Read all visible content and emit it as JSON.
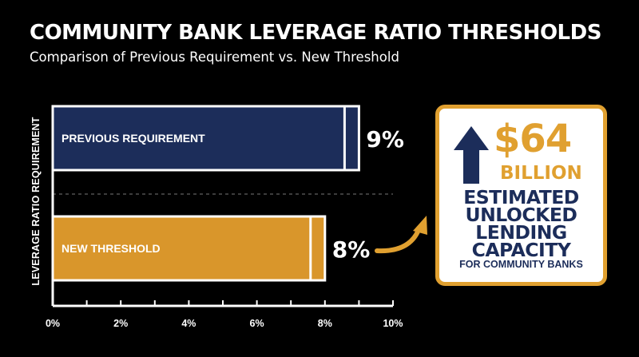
{
  "chart_data": {
    "type": "bar",
    "orientation": "horizontal",
    "title": "COMMUNITY BANK LEVERAGE RATIO THRESHOLDS",
    "subtitle": "Comparison of Previous Requirement vs. New Threshold",
    "ylabel": "LEVERAGE RATIO REQUIREMENT",
    "xlabel": "",
    "categories": [
      "PREVIOUS REQUIREMENT",
      "NEW THRESHOLD"
    ],
    "values": [
      9,
      8
    ],
    "value_labels": [
      "9%",
      "8%"
    ],
    "xlim": [
      0,
      10
    ],
    "x_ticks": [
      "0%",
      "2%",
      "4%",
      "6%",
      "8%",
      "10%"
    ],
    "grid": false,
    "colors": [
      "#1c2d5a",
      "#d9962b"
    ]
  },
  "callout": {
    "amount": "$64",
    "unit": "BILLION",
    "lines": [
      "ESTIMATED",
      "UNLOCKED",
      "LENDING",
      "CAPACITY"
    ],
    "sub": "FOR COMMUNITY BANKS",
    "icon": "up-arrow-icon",
    "pointer_icon": "curved-arrow-icon",
    "accent_color": "#e0a030",
    "text_color": "#1c2d5a"
  }
}
